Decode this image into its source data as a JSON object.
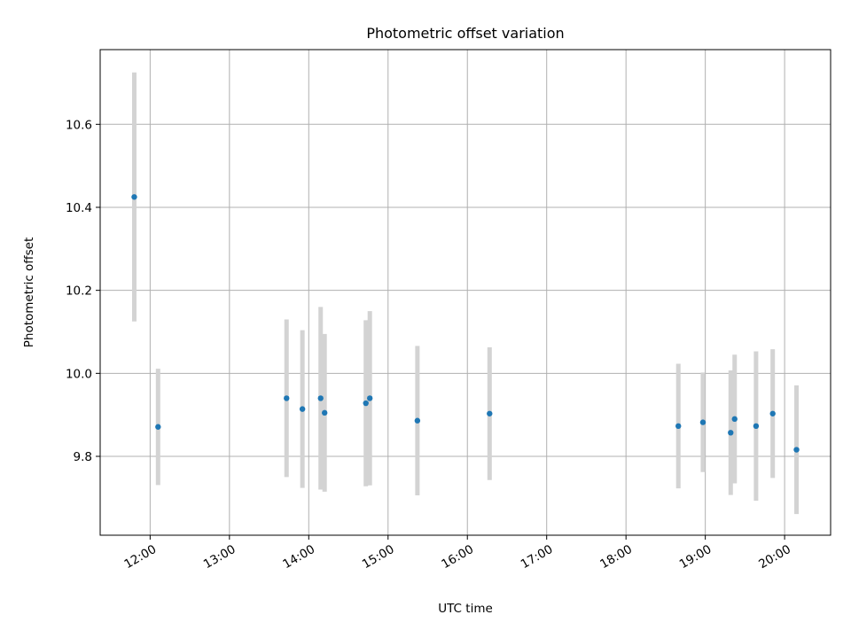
{
  "chart_data": {
    "type": "scatter",
    "title": "Photometric offset variation",
    "xlabel": "UTC time",
    "ylabel": "Photometric offset",
    "x_tick_labels": [
      "12:00",
      "13:00",
      "14:00",
      "15:00",
      "16:00",
      "17:00",
      "18:00",
      "19:00",
      "20:00"
    ],
    "x_ticks_hours": [
      12,
      13,
      14,
      15,
      16,
      17,
      18,
      19,
      20
    ],
    "y_tick_labels": [
      "9.8",
      "10.0",
      "10.2",
      "10.4",
      "10.6"
    ],
    "y_ticks": [
      9.8,
      10.0,
      10.2,
      10.4,
      10.6
    ],
    "xlim_hours": [
      11.37,
      20.58
    ],
    "ylim": [
      9.61,
      10.78
    ],
    "grid": true,
    "marker_color": "#1f77b4",
    "errorbar_color": "#d3d3d3",
    "points": [
      {
        "time": "11:48",
        "hours": 11.8,
        "y": 10.425,
        "err": 0.3
      },
      {
        "time": "12:06",
        "hours": 12.1,
        "y": 9.871,
        "err": 0.14
      },
      {
        "time": "13:43",
        "hours": 13.72,
        "y": 9.94,
        "err": 0.19
      },
      {
        "time": "13:55",
        "hours": 13.92,
        "y": 9.914,
        "err": 0.19
      },
      {
        "time": "14:09",
        "hours": 14.15,
        "y": 9.94,
        "err": 0.22
      },
      {
        "time": "14:12",
        "hours": 14.2,
        "y": 9.905,
        "err": 0.19
      },
      {
        "time": "14:43",
        "hours": 14.72,
        "y": 9.928,
        "err": 0.2
      },
      {
        "time": "14:46",
        "hours": 14.77,
        "y": 9.94,
        "err": 0.21
      },
      {
        "time": "15:22",
        "hours": 15.37,
        "y": 9.886,
        "err": 0.18
      },
      {
        "time": "16:17",
        "hours": 16.28,
        "y": 9.903,
        "err": 0.16
      },
      {
        "time": "18:40",
        "hours": 18.66,
        "y": 9.873,
        "err": 0.15
      },
      {
        "time": "18:58",
        "hours": 18.97,
        "y": 9.882,
        "err": 0.12
      },
      {
        "time": "19:19",
        "hours": 19.32,
        "y": 9.857,
        "err": 0.15
      },
      {
        "time": "19:22",
        "hours": 19.37,
        "y": 9.89,
        "err": 0.155
      },
      {
        "time": "19:38",
        "hours": 19.64,
        "y": 9.873,
        "err": 0.18
      },
      {
        "time": "19:51",
        "hours": 19.85,
        "y": 9.903,
        "err": 0.155
      },
      {
        "time": "20:09",
        "hours": 20.15,
        "y": 9.816,
        "err": 0.155
      }
    ]
  }
}
